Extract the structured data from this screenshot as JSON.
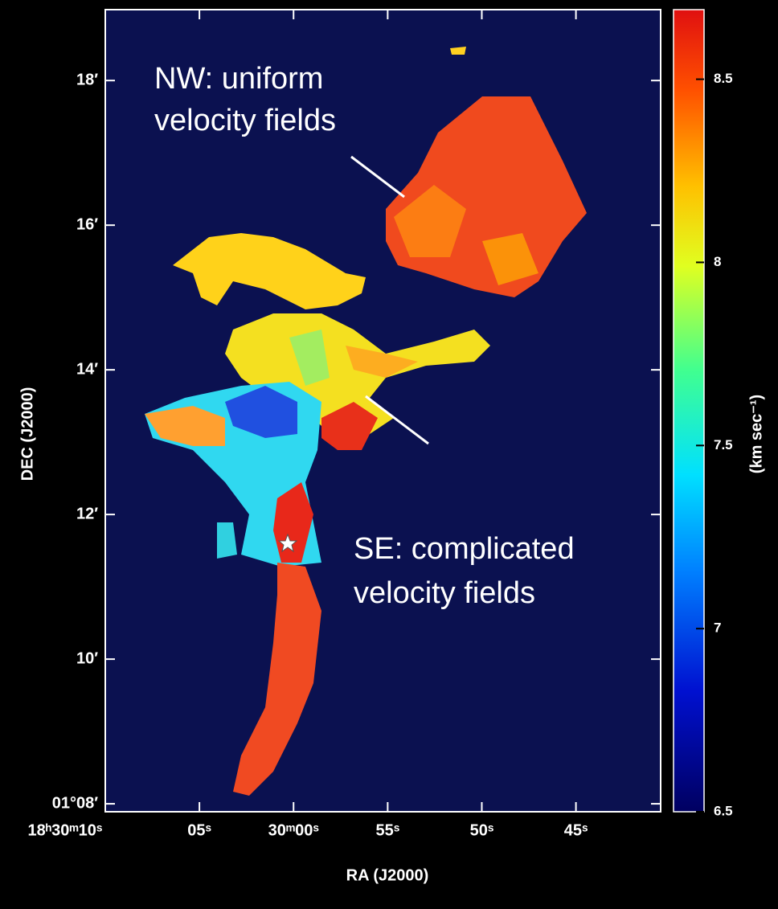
{
  "figure": {
    "annotations": [
      {
        "lines": [
          "NW: uniform",
          "velocity fields"
        ]
      },
      {
        "lines": [
          "SE: complicated",
          "velocity fields"
        ]
      }
    ],
    "y_axis": {
      "label": "DEC (J2000)",
      "lim": [
        7.89,
        18.98
      ],
      "ticks": [
        {
          "value": 18,
          "label": "18′"
        },
        {
          "value": 16,
          "label": "16′"
        },
        {
          "value": 14,
          "label": "14′"
        },
        {
          "value": 12,
          "label": "12′"
        },
        {
          "value": 10,
          "label": "10′"
        },
        {
          "value": 8,
          "label": "01°08′"
        }
      ]
    },
    "x_axis": {
      "label": "RA (J2000)",
      "lim": [
        1810,
        1780.5
      ],
      "ticks": [
        {
          "value": 1810,
          "label": "18ʰ30ᵐ10ˢ"
        },
        {
          "value": 1805,
          "label": "05ˢ"
        },
        {
          "value": 1800,
          "label": "30ᵐ00ˢ"
        },
        {
          "value": 1795,
          "label": "55ˢ"
        },
        {
          "value": 1790,
          "label": "50ˢ"
        },
        {
          "value": 1785,
          "label": "45ˢ"
        }
      ]
    },
    "colorbar": {
      "label": "(km sec⁻¹)",
      "lim": [
        6.5,
        8.69
      ],
      "ticks": [
        8.5,
        8,
        7.5,
        7,
        6.5
      ]
    }
  }
}
